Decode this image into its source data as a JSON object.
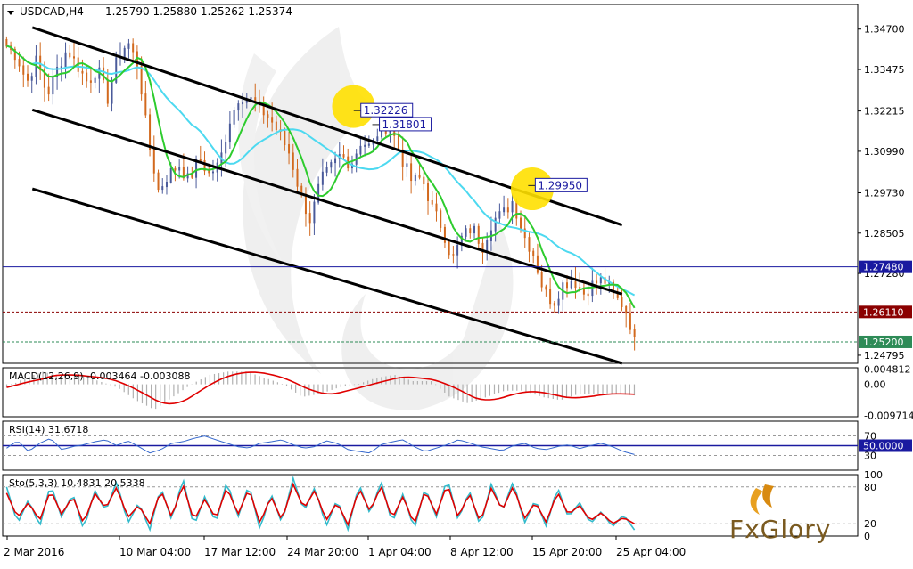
{
  "header": {
    "symbol_label": "USDCAD,H4",
    "ohlc": "1.25790 1.25880 1.25262 1.25374"
  },
  "colors": {
    "candle_up": "#4a5a9a",
    "candle_down": "#d2691e",
    "ma_fast": "#2ecc2e",
    "ma_slow": "#4dd9f0",
    "channel": "#000000",
    "resistance_line": "#1a1aa0",
    "level_red": "#8b0000",
    "level_green": "#2e8b57",
    "macd_signal": "#e00000",
    "macd_hist": "#b0b0b0",
    "rsi_line": "#3366cc",
    "stoch_main": "#33bbcc",
    "stoch_signal": "#e00000",
    "highlight": "#ffe000",
    "frame": "#000000"
  },
  "logo": {
    "text": "FxGlory",
    "icon": "fxglory-leaf-logo"
  },
  "chart_data": [
    {
      "type": "candlestick",
      "name_label": "USDCAD,H4",
      "ylim": [
        1.2455,
        1.3545
      ],
      "price_axis_ticks": [
        "1.34700",
        "1.33475",
        "1.32215",
        "1.30990",
        "1.29730",
        "1.28505",
        "1.27280",
        "1.24795"
      ],
      "x_tick_labels": [
        "2 Mar 2016",
        "10 Mar 04:00",
        "17 Mar 12:00",
        "24 Mar 20:00",
        "1 Apr 04:00",
        "8 Apr 12:00",
        "15 Apr 20:00",
        "25 Apr 04:00"
      ],
      "close_path": [
        1.342,
        1.339,
        1.331,
        1.338,
        1.327,
        1.335,
        1.341,
        1.336,
        1.331,
        1.335,
        1.326,
        1.339,
        1.343,
        1.336,
        1.313,
        1.298,
        1.303,
        1.306,
        1.301,
        1.308,
        1.303,
        1.306,
        1.319,
        1.327,
        1.326,
        1.323,
        1.32,
        1.315,
        1.309,
        1.297,
        1.289,
        1.301,
        1.305,
        1.309,
        1.306,
        1.313,
        1.311,
        1.318,
        1.317,
        1.308,
        1.301,
        1.302,
        1.293,
        1.287,
        1.277,
        1.284,
        1.287,
        1.281,
        1.289,
        1.291,
        1.295,
        1.285,
        1.279,
        1.268,
        1.264,
        1.27,
        1.271,
        1.267,
        1.27,
        1.271,
        1.266,
        1.263,
        1.2537
      ],
      "channel": [
        {
          "from": [
            "3 Mar 20:00",
            1.3475
          ],
          "to": [
            "25 Apr 20:00",
            1.2875
          ]
        },
        {
          "from": [
            "3 Mar 20:00",
            1.3225
          ],
          "to": [
            "25 Apr 20:00",
            1.2665
          ]
        },
        {
          "from": [
            "3 Mar 20:00",
            1.2985
          ],
          "to": [
            "25 Apr 20:00",
            1.2455
          ]
        }
      ],
      "highlight_circles": [
        {
          "at": [
            "30 Mar 20:00",
            1.3235
          ]
        },
        {
          "at": [
            "15 Apr 20:00",
            1.2985
          ]
        }
      ],
      "price_callouts": [
        {
          "label": "1.32226",
          "value": 1.32226,
          "at": "31 Mar 12:00"
        },
        {
          "label": "1.31801",
          "value": 1.31801,
          "at": "2 Apr 04:00"
        },
        {
          "label": "1.29950",
          "value": 1.2995,
          "at": "16 Apr 04:00"
        }
      ],
      "levels": [
        {
          "label": "1.27480",
          "value": 1.2748,
          "style": "solid",
          "color_key": "resistance_line"
        },
        {
          "label": "1.26110",
          "value": 1.2611,
          "style": "dashed",
          "color_key": "level_red"
        },
        {
          "label": "1.25200",
          "value": 1.252,
          "style": "dashed",
          "color_key": "level_green"
        }
      ],
      "grid": false
    },
    {
      "type": "macd",
      "label": "MACD(12,26,9) -0.003464 -0.003088",
      "axis_ticks": [
        "0.004812",
        "0.00",
        "-0.009714"
      ],
      "ylim": [
        -0.0102,
        0.0052
      ],
      "main_path": [
        -0.001,
        0.002,
        0.004,
        0.002,
        0.003,
        0.001,
        -0.001,
        -0.005,
        -0.008,
        -0.004,
        0.0,
        0.003,
        0.004,
        0.004,
        0.002,
        0.0,
        -0.004,
        -0.003,
        -0.001,
        0.0,
        0.002,
        0.003,
        0.001,
        0.001,
        -0.004,
        -0.006,
        -0.004,
        -0.002,
        -0.002,
        -0.004,
        -0.005,
        -0.003,
        -0.003,
        -0.003,
        -0.0035
      ]
    },
    {
      "type": "line",
      "label": "RSI(14) 31.6718",
      "axis_ticks": [
        "70",
        "50.0000",
        "30"
      ],
      "ylim": [
        0,
        100
      ],
      "levels": [
        70,
        50,
        30
      ],
      "path": [
        45,
        60,
        38,
        55,
        65,
        42,
        48,
        52,
        58,
        62,
        50,
        60,
        48,
        35,
        42,
        55,
        58,
        65,
        70,
        62,
        55,
        48,
        45,
        55,
        58,
        62,
        52,
        45,
        48,
        60,
        55,
        42,
        38,
        35,
        52,
        58,
        62,
        48,
        38,
        45,
        52,
        62,
        56,
        48,
        44,
        40,
        50,
        55,
        45,
        42,
        48,
        52,
        44,
        50,
        55,
        48,
        38,
        32
      ]
    },
    {
      "type": "line",
      "label": "Sto(5,3,3) 10.4831 20.5338",
      "axis_ticks": [
        "100",
        "80",
        "20",
        "0"
      ],
      "ylim": [
        0,
        100
      ],
      "levels": [
        80,
        20
      ],
      "series": [
        {
          "color_key": "stoch_main",
          "path": [
            80,
            20,
            60,
            15,
            85,
            30,
            70,
            10,
            75,
            40,
            90,
            20,
            55,
            10,
            80,
            25,
            95,
            15,
            65,
            20,
            90,
            30,
            85,
            10,
            70,
            20,
            95,
            40,
            80,
            15,
            60,
            10,
            85,
            35,
            90,
            20,
            70,
            10,
            80,
            30,
            95,
            25,
            75,
            15,
            85,
            40,
            90,
            20,
            60,
            15,
            80,
            30,
            55,
            20,
            40,
            15,
            35,
            10
          ]
        },
        {
          "color_key": "stoch_signal",
          "path": [
            70,
            30,
            55,
            25,
            75,
            35,
            65,
            20,
            70,
            45,
            80,
            30,
            50,
            20,
            75,
            30,
            85,
            25,
            60,
            28,
            80,
            35,
            78,
            20,
            65,
            25,
            85,
            45,
            75,
            25,
            55,
            18,
            78,
            40,
            82,
            28,
            65,
            18,
            75,
            35,
            85,
            30,
            70,
            22,
            78,
            42,
            82,
            28,
            55,
            22,
            72,
            35,
            50,
            25,
            38,
            20,
            30,
            20
          ]
        }
      ]
    }
  ]
}
